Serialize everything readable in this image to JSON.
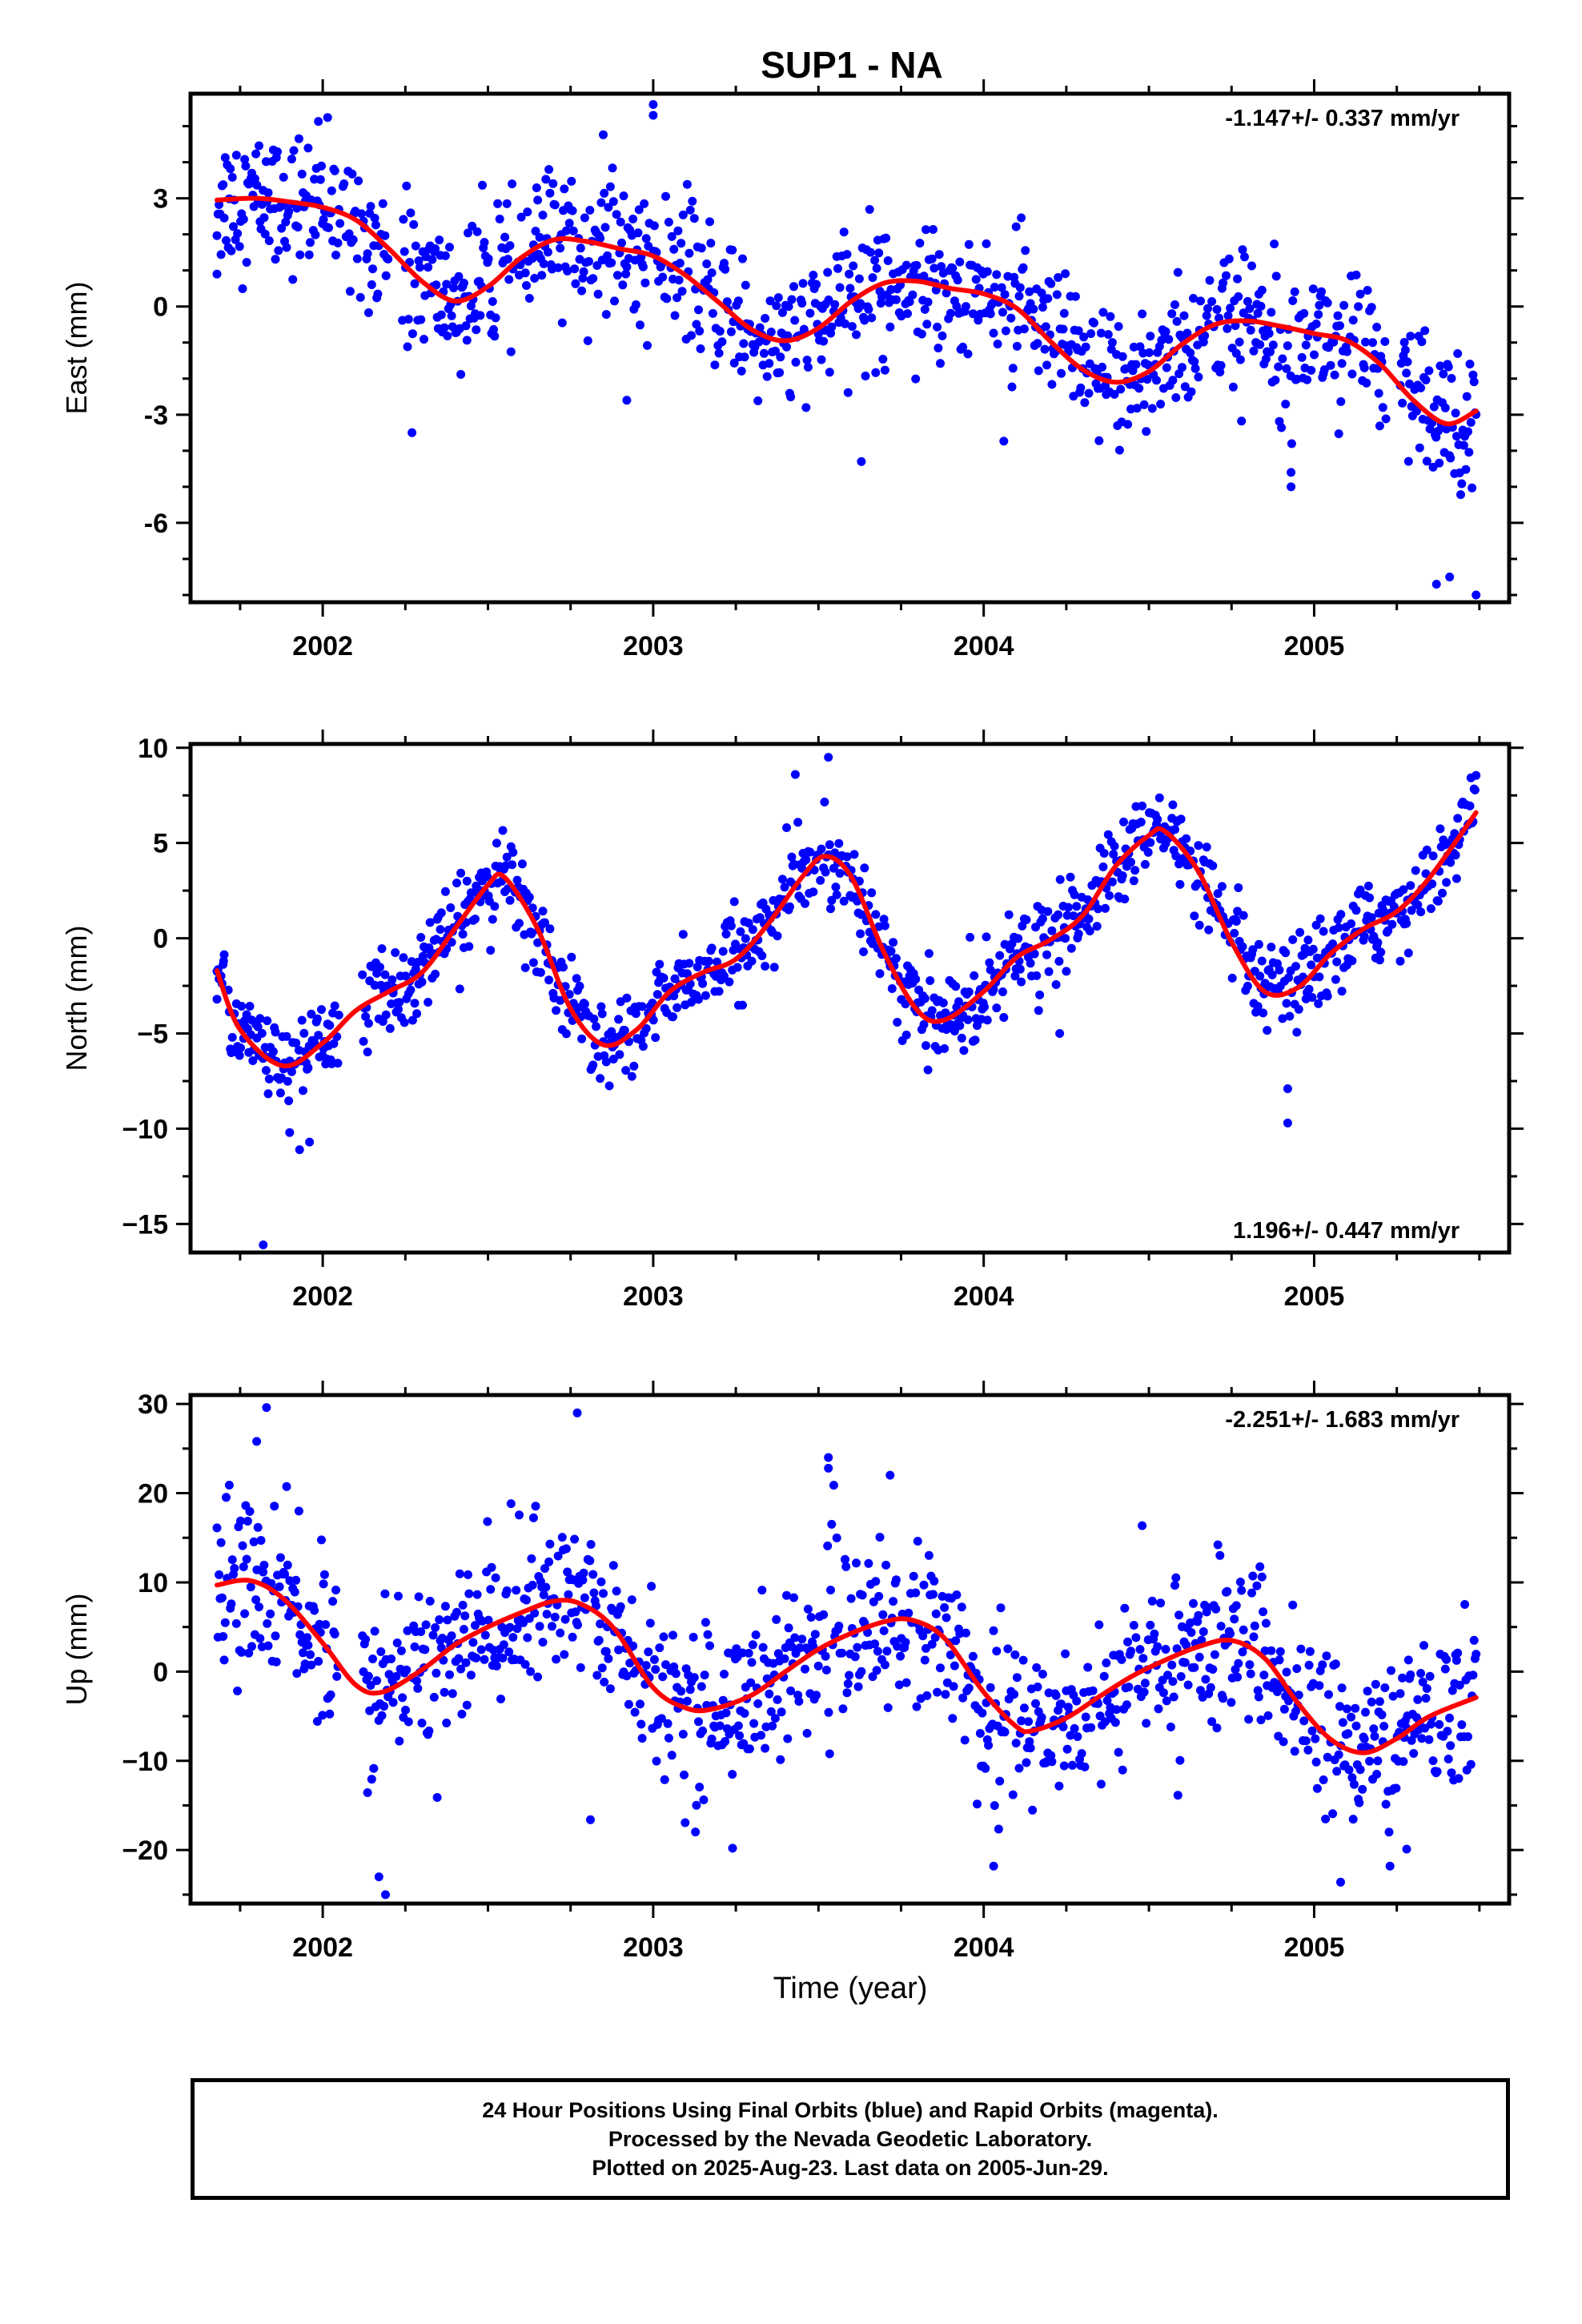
{
  "title": "SUP1 - NA",
  "xlabel": "Time (year)",
  "footer": {
    "line1": "24 Hour Positions Using Final Orbits (blue) and Rapid Orbits (magenta).",
    "line2": "Processed by the Nevada Geodetic Laboratory.",
    "line3": "Plotted on 2025-Aug-23. Last data on 2005-Jun-29."
  },
  "colors": {
    "points": "#0000ff",
    "fit": "#ff0000",
    "axes": "#000000",
    "background": "#ffffff"
  },
  "chart_data": [
    {
      "type": "scatter",
      "ylabel": "East (mm)",
      "rate": "-1.147+/- 0.337 mm/yr",
      "rate_position": "top-right",
      "xlim": [
        2001.6,
        2005.59
      ],
      "ylim": [
        -8.2,
        5.9
      ],
      "xticks": [
        2002,
        2003,
        2004,
        2005
      ],
      "xtick_labels": [
        "2002",
        "2003",
        "2004",
        "2005"
      ],
      "yticks": [
        -6,
        -3,
        0,
        3
      ],
      "ytick_labels": [
        "-6",
        "-3",
        "0",
        "3"
      ],
      "x_minor_step": 0.25,
      "y_minor_step": 1,
      "grid": false,
      "fit_curve": {
        "x": [
          2001.68,
          2001.8,
          2001.9,
          2002.0,
          2002.1,
          2002.2,
          2002.3,
          2002.4,
          2002.5,
          2002.6,
          2002.7,
          2002.8,
          2002.9,
          2003.0,
          2003.1,
          2003.2,
          2003.3,
          2003.4,
          2003.5,
          2003.6,
          2003.7,
          2003.8,
          2003.9,
          2004.0,
          2004.1,
          2004.2,
          2004.3,
          2004.4,
          2004.5,
          2004.6,
          2004.7,
          2004.8,
          2004.9,
          2005.0,
          2005.1,
          2005.2,
          2005.3,
          2005.4,
          2005.49
        ],
        "y": [
          2.95,
          3.0,
          2.9,
          2.75,
          2.4,
          1.6,
          0.7,
          0.15,
          0.55,
          1.35,
          1.85,
          1.8,
          1.6,
          1.4,
          0.85,
          0.1,
          -0.65,
          -0.95,
          -0.6,
          0.15,
          0.65,
          0.7,
          0.5,
          0.35,
          -0.05,
          -0.95,
          -1.75,
          -2.1,
          -1.8,
          -1.05,
          -0.5,
          -0.4,
          -0.55,
          -0.75,
          -0.95,
          -1.6,
          -2.6,
          -3.25,
          -2.9
        ]
      },
      "fit_control_points": [
        [
          2001.68,
          2.95
        ],
        [
          2001.8,
          3.0
        ],
        [
          2001.9,
          2.9
        ],
        [
          2002.0,
          2.75
        ],
        [
          2002.1,
          2.4
        ],
        [
          2002.2,
          1.6
        ],
        [
          2002.3,
          0.7
        ],
        [
          2002.4,
          0.15
        ],
        [
          2002.5,
          0.55
        ],
        [
          2002.6,
          1.35
        ],
        [
          2002.7,
          1.85
        ],
        [
          2002.8,
          1.8
        ],
        [
          2002.9,
          1.6
        ],
        [
          2003.0,
          1.4
        ],
        [
          2003.1,
          0.85
        ],
        [
          2003.2,
          0.1
        ],
        [
          2003.3,
          -0.65
        ],
        [
          2003.4,
          -0.95
        ],
        [
          2003.5,
          -0.6
        ],
        [
          2003.6,
          0.15
        ],
        [
          2003.7,
          0.65
        ],
        [
          2003.8,
          0.7
        ],
        [
          2003.9,
          0.5
        ],
        [
          2004.0,
          0.35
        ],
        [
          2004.1,
          -0.05
        ],
        [
          2004.2,
          -0.95
        ],
        [
          2004.3,
          -1.75
        ],
        [
          2004.4,
          -2.1
        ],
        [
          2004.5,
          -1.8
        ],
        [
          2004.6,
          -1.05
        ],
        [
          2004.7,
          -0.5
        ],
        [
          2004.8,
          -0.4
        ],
        [
          2004.9,
          -0.55
        ],
        [
          2005.0,
          -0.75
        ],
        [
          2005.1,
          -0.95
        ],
        [
          2005.2,
          -1.6
        ],
        [
          2005.3,
          -2.6
        ],
        [
          2005.4,
          -3.25
        ],
        [
          2005.49,
          -2.9
        ]
      ],
      "points_model": {
        "x_start": 2001.68,
        "x_end": 2005.49,
        "approx_daily_points": 1230,
        "scatter_sigma_mm": 0.95,
        "gaps": [
          [
            2002.2,
            2002.24
          ],
          [
            2005.22,
            2005.26
          ]
        ]
      },
      "notable_points": [
        [
          2003.0,
          5.6
        ],
        [
          2003.0,
          5.3
        ],
        [
          2003.63,
          -4.3
        ],
        [
          2004.93,
          -4.6
        ],
        [
          2004.93,
          -5.0
        ],
        [
          2005.37,
          -7.7
        ],
        [
          2005.41,
          -7.5
        ],
        [
          2005.49,
          -8.0
        ],
        [
          2001.68,
          0.9
        ],
        [
          2002.27,
          -3.5
        ],
        [
          2002.92,
          -2.6
        ]
      ]
    },
    {
      "type": "scatter",
      "ylabel": "North (mm)",
      "rate": "1.196+/- 0.447 mm/yr",
      "rate_position": "bottom-right",
      "xlim": [
        2001.6,
        2005.59
      ],
      "ylim": [
        -16.5,
        10.2
      ],
      "xticks": [
        2002,
        2003,
        2004,
        2005
      ],
      "xtick_labels": [
        "2002",
        "2003",
        "2004",
        "2005"
      ],
      "yticks": [
        -15,
        -10,
        -5,
        0,
        5,
        10
      ],
      "ytick_labels": [
        "−15",
        "−10",
        "−5",
        "0",
        "5",
        "10"
      ],
      "x_minor_step": 0.25,
      "y_minor_step": 2.5,
      "grid": false,
      "fit_curve": {
        "x": [
          2001.68,
          2001.75,
          2001.88,
          2002.0,
          2002.1,
          2002.2,
          2002.3,
          2002.4,
          2002.5,
          2002.55,
          2002.65,
          2002.75,
          2002.85,
          2002.95,
          2003.05,
          2003.15,
          2003.25,
          2003.35,
          2003.45,
          2003.52,
          2003.6,
          2003.7,
          2003.8,
          2003.88,
          2004.0,
          2004.1,
          2004.2,
          2004.3,
          2004.4,
          2004.5,
          2004.55,
          2004.65,
          2004.75,
          2004.85,
          2004.95,
          2005.05,
          2005.15,
          2005.25,
          2005.35,
          2005.49
        ],
        "y": [
          -1.7,
          -4.8,
          -6.7,
          -5.5,
          -3.8,
          -2.8,
          -1.8,
          0.5,
          2.8,
          3.2,
          0.5,
          -3.7,
          -5.6,
          -4.8,
          -2.8,
          -1.8,
          -1.1,
          0.8,
          3.2,
          4.3,
          3.2,
          -0.8,
          -3.8,
          -4.3,
          -2.8,
          -1.0,
          -0.1,
          1.2,
          3.8,
          5.4,
          5.6,
          3.5,
          -0.2,
          -2.8,
          -2.6,
          -0.8,
          0.5,
          1.4,
          3.2,
          6.6
        ]
      },
      "points_model": {
        "x_start": 2001.68,
        "x_end": 2005.49,
        "approx_daily_points": 1230,
        "scatter_sigma_mm": 1.1,
        "gaps": [
          [
            2002.05,
            2002.12
          ]
        ]
      },
      "notable_points": [
        [
          2001.82,
          -16.1
        ],
        [
          2001.9,
          -10.2
        ],
        [
          2001.93,
          -11.1
        ],
        [
          2001.96,
          -10.7
        ],
        [
          2003.43,
          8.6
        ],
        [
          2003.53,
          9.5
        ],
        [
          2004.92,
          -7.9
        ],
        [
          2004.92,
          -9.7
        ],
        [
          2004.23,
          -5.0
        ],
        [
          2001.68,
          -3.2
        ],
        [
          2001.7,
          -1.2
        ]
      ]
    },
    {
      "type": "scatter",
      "ylabel": "Up (mm)",
      "rate": "-2.251+/- 1.683 mm/yr",
      "rate_position": "top-right",
      "xlim": [
        2001.6,
        2005.59
      ],
      "ylim": [
        -26,
        31
      ],
      "xticks": [
        2002,
        2003,
        2004,
        2005
      ],
      "xtick_labels": [
        "2002",
        "2003",
        "2004",
        "2005"
      ],
      "yticks": [
        -20,
        -10,
        0,
        10,
        20,
        30
      ],
      "ytick_labels": [
        "−20",
        "−10",
        "0",
        "10",
        "20",
        "30"
      ],
      "x_minor_step": 0.25,
      "y_minor_step": 5,
      "grid": false,
      "fit_curve": {
        "x": [
          2001.68,
          2001.78,
          2001.88,
          2002.0,
          2002.1,
          2002.18,
          2002.3,
          2002.4,
          2002.5,
          2002.6,
          2002.7,
          2002.78,
          2002.88,
          2003.0,
          2003.1,
          2003.18,
          2003.3,
          2003.4,
          2003.5,
          2003.6,
          2003.7,
          2003.78,
          2003.88,
          2004.0,
          2004.1,
          2004.15,
          2004.25,
          2004.35,
          2004.45,
          2004.55,
          2004.65,
          2004.75,
          2004.85,
          2004.95,
          2005.05,
          2005.15,
          2005.25,
          2005.35,
          2005.49
        ],
        "y": [
          9.7,
          10.2,
          8.2,
          3.2,
          -1.5,
          -2.3,
          0.2,
          3.0,
          5.0,
          6.6,
          7.9,
          7.6,
          4.9,
          -1.8,
          -4.1,
          -4.2,
          -2.6,
          0.0,
          2.5,
          4.3,
          5.6,
          5.8,
          3.8,
          -2.3,
          -6.2,
          -6.6,
          -5.2,
          -2.8,
          -0.5,
          1.3,
          2.8,
          3.5,
          1.5,
          -3.5,
          -7.6,
          -9.1,
          -7.5,
          -5.0,
          -2.9
        ]
      },
      "points_model": {
        "x_start": 2001.68,
        "x_end": 2005.49,
        "approx_daily_points": 1230,
        "scatter_sigma_mm": 4.6,
        "gaps": [
          [
            2002.05,
            2002.12
          ]
        ]
      },
      "notable_points": [
        [
          2001.8,
          25.8
        ],
        [
          2001.83,
          29.6
        ],
        [
          2002.77,
          29.0
        ],
        [
          2003.53,
          24.0
        ],
        [
          2003.53,
          22.8
        ],
        [
          2002.19,
          -25.0
        ],
        [
          2002.17,
          -23.0
        ],
        [
          2003.24,
          -19.8
        ],
        [
          2004.03,
          -21.8
        ],
        [
          2005.08,
          -23.6
        ],
        [
          2005.28,
          -19.9
        ],
        [
          2002.81,
          -16.6
        ]
      ]
    }
  ]
}
